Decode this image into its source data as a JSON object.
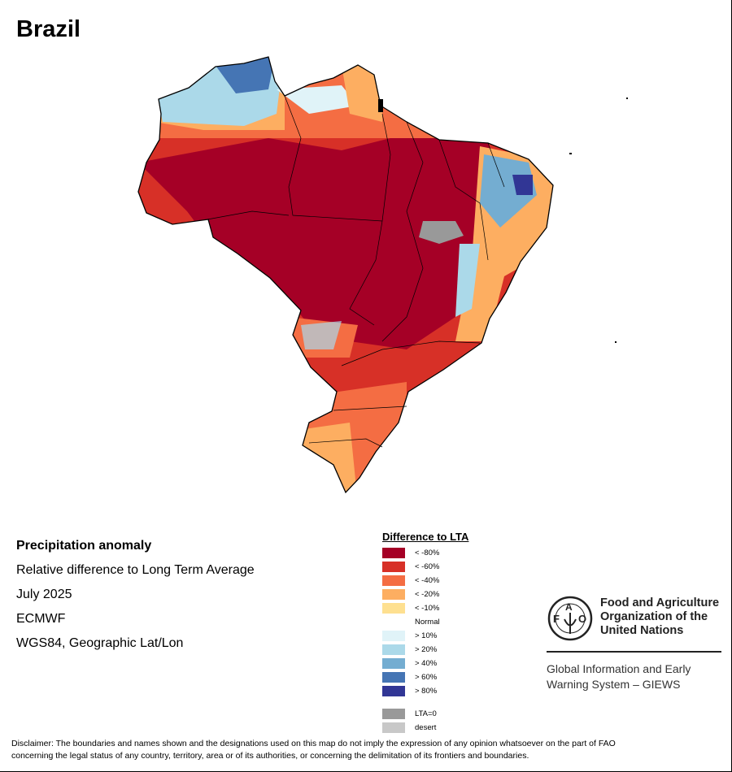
{
  "title": "Brazil",
  "info": {
    "heading": "Precipitation anomaly",
    "subtitle": "Relative difference to Long Term Average",
    "period": "July 2025",
    "source": "ECMWF",
    "projection": "WGS84, Geographic Lat/Lon"
  },
  "legend": {
    "title": "Difference to LTA",
    "items": [
      {
        "label": "< -80%",
        "color": "#a50026"
      },
      {
        "label": "< -60%",
        "color": "#d73027"
      },
      {
        "label": "< -40%",
        "color": "#f46d43"
      },
      {
        "label": "< -20%",
        "color": "#fdae61"
      },
      {
        "label": "< -10%",
        "color": "#fee090"
      },
      {
        "label": "Normal",
        "color": "#ffffff"
      },
      {
        "label": "> 10%",
        "color": "#e0f3f8"
      },
      {
        "label": "> 20%",
        "color": "#abd9e9"
      },
      {
        "label": "> 40%",
        "color": "#74add1"
      },
      {
        "label": "> 60%",
        "color": "#4575b4"
      },
      {
        "label": "> 80%",
        "color": "#313695"
      }
    ],
    "extra": [
      {
        "label": "LTA=0",
        "color": "#999999"
      },
      {
        "label": "desert",
        "color": "#c8c8c8"
      }
    ]
  },
  "logo": {
    "emblem_text": "FAO FIAT PANIS",
    "org_line1": "Food and Agriculture",
    "org_line2": "Organization of the",
    "org_line3": "United Nations",
    "system_line1": "Global Information and Early",
    "system_line2": "Warning System – GIEWS"
  },
  "disclaimer_line1": "Disclaimer: The boundaries and names shown and the designations used on this map do not imply the expression of any opinion whatsoever on the part of FAO",
  "disclaimer_line2": "concerning the legal status of any country, territory, area or of its authorities, or concerning the delimitation of its frontiers and boundaries."
}
